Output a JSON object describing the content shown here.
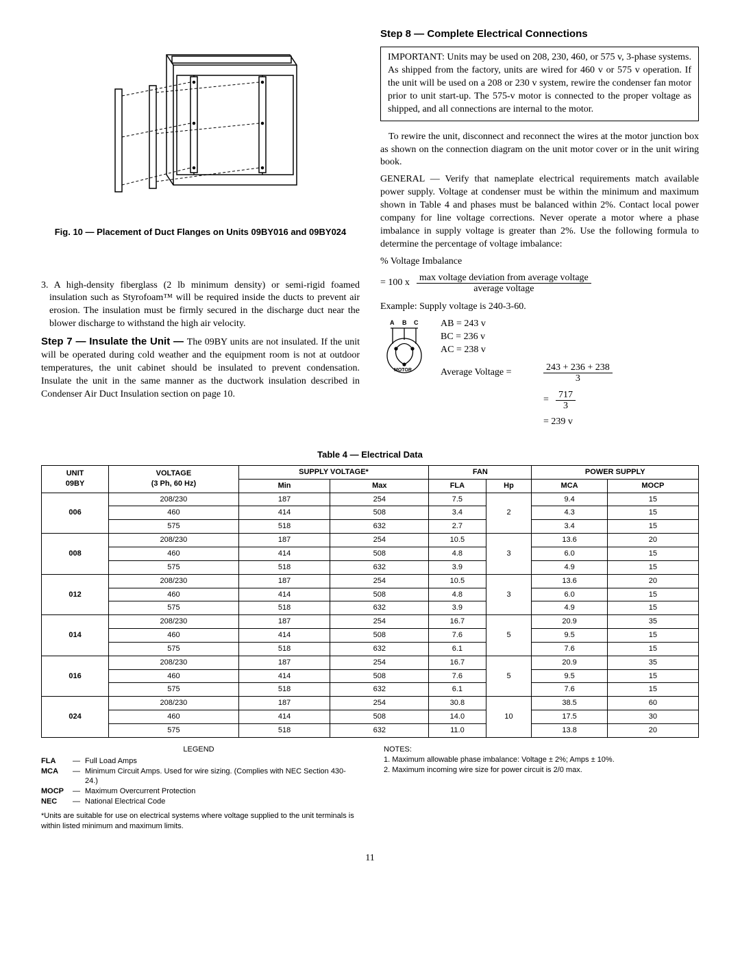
{
  "left": {
    "fig_caption": "Fig. 10 — Placement of Duct Flanges on Units 09BY016 and 09BY024",
    "item3": "3.  A high-density fiberglass (2 lb minimum density) or semi-rigid foamed insulation such as Styrofoam™ will be required inside the ducts to prevent air erosion. The insulation must be firmly secured in the discharge duct near the blower discharge to withstand the high air velocity.",
    "step7_heading": "Step 7 — Insulate the Unit — ",
    "step7_body": "The 09BY units are not insulated. If the unit will be operated during cold weather and the equipment room is not at outdoor temperatures, the unit cabinet should be insulated to prevent condensation. Insulate the unit in the same manner as the ductwork insulation described in Condenser Air Duct Insulation section on page 10."
  },
  "right": {
    "step8_heading": "Step 8 — Complete Electrical Connections",
    "important": "IMPORTANT:  Units may be used on 208, 230, 460, or 575 v, 3-phase systems. As shipped from the factory, units are wired for 460 v or 575 v operation. If the unit will be used on a 208 or 230 v system, rewire the condenser fan motor prior to unit start-up. The 575-v motor is connected to the proper voltage as shipped, and all connections are internal to the motor.",
    "para_rewire": "To rewire the unit, disconnect and reconnect the wires at the motor junction box as shown on the connection diagram on the unit motor cover or in the unit wiring book.",
    "para_general": "GENERAL — Verify that nameplate electrical requirements match available power supply. Voltage at condenser must be within the minimum and maximum shown in Table 4 and phases must be balanced within 2%. Contact local power company for line voltage corrections. Never operate a motor where a phase imbalance in supply voltage is greater than 2%. Use the following formula to determine the percentage of voltage imbalance:",
    "pct_label": "% Voltage Imbalance",
    "formula_lhs": "= 100 x",
    "formula_num": "max voltage deviation from average voltage",
    "formula_den": "average voltage",
    "example_label": "Example: Supply voltage is 240-3-60.",
    "motor_labels": {
      "a": "A",
      "b": "B",
      "c": "C",
      "motor": "MOTOR"
    },
    "eq": {
      "ab": "AB = 243 v",
      "bc": "BC = 236 v",
      "ac": "AC = 238 v",
      "avg_lbl": "Average Voltage =",
      "avg_num": "243 + 236 + 238",
      "avg_den": "3",
      "sum_num": "717",
      "sum_den": "3",
      "result": "=   239 v"
    }
  },
  "table": {
    "title": "Table 4 — Electrical Data",
    "headers": {
      "unit1": "UNIT",
      "unit2": "09BY",
      "voltage1": "VOLTAGE",
      "voltage2": "(3 Ph, 60 Hz)",
      "supply": "SUPPLY VOLTAGE*",
      "min": "Min",
      "max": "Max",
      "fan": "FAN",
      "fla": "FLA",
      "hp": "Hp",
      "power": "POWER SUPPLY",
      "mca": "MCA",
      "mocp": "MOCP"
    },
    "groups": [
      {
        "unit": "006",
        "hp": "2",
        "rows": [
          [
            "208/230",
            "187",
            "254",
            "7.5",
            "9.4",
            "15"
          ],
          [
            "460",
            "414",
            "508",
            "3.4",
            "4.3",
            "15"
          ],
          [
            "575",
            "518",
            "632",
            "2.7",
            "3.4",
            "15"
          ]
        ]
      },
      {
        "unit": "008",
        "hp": "3",
        "rows": [
          [
            "208/230",
            "187",
            "254",
            "10.5",
            "13.6",
            "20"
          ],
          [
            "460",
            "414",
            "508",
            "4.8",
            "6.0",
            "15"
          ],
          [
            "575",
            "518",
            "632",
            "3.9",
            "4.9",
            "15"
          ]
        ]
      },
      {
        "unit": "012",
        "hp": "3",
        "rows": [
          [
            "208/230",
            "187",
            "254",
            "10.5",
            "13.6",
            "20"
          ],
          [
            "460",
            "414",
            "508",
            "4.8",
            "6.0",
            "15"
          ],
          [
            "575",
            "518",
            "632",
            "3.9",
            "4.9",
            "15"
          ]
        ]
      },
      {
        "unit": "014",
        "hp": "5",
        "rows": [
          [
            "208/230",
            "187",
            "254",
            "16.7",
            "20.9",
            "35"
          ],
          [
            "460",
            "414",
            "508",
            "7.6",
            "9.5",
            "15"
          ],
          [
            "575",
            "518",
            "632",
            "6.1",
            "7.6",
            "15"
          ]
        ]
      },
      {
        "unit": "016",
        "hp": "5",
        "rows": [
          [
            "208/230",
            "187",
            "254",
            "16.7",
            "20.9",
            "35"
          ],
          [
            "460",
            "414",
            "508",
            "7.6",
            "9.5",
            "15"
          ],
          [
            "575",
            "518",
            "632",
            "6.1",
            "7.6",
            "15"
          ]
        ]
      },
      {
        "unit": "024",
        "hp": "10",
        "rows": [
          [
            "208/230",
            "187",
            "254",
            "30.8",
            "38.5",
            "60"
          ],
          [
            "460",
            "414",
            "508",
            "14.0",
            "17.5",
            "30"
          ],
          [
            "575",
            "518",
            "632",
            "11.0",
            "13.8",
            "20"
          ]
        ]
      }
    ]
  },
  "legend": {
    "title": "LEGEND",
    "items": [
      {
        "abbr": "FLA",
        "def": "Full Load Amps"
      },
      {
        "abbr": "MCA",
        "def": "Minimum Circuit Amps. Used for wire sizing. (Complies with NEC Section 430-24.)"
      },
      {
        "abbr": "MOCP",
        "def": "Maximum Overcurrent Protection"
      },
      {
        "abbr": "NEC",
        "def": "National Electrical Code"
      }
    ],
    "footnote": "*Units are suitable for use on electrical systems where voltage supplied to the unit terminals is within listed minimum and maximum limits."
  },
  "notes": {
    "title": "NOTES:",
    "items": [
      "1.  Maximum allowable phase imbalance: Voltage ±  2%; Amps ±  10%.",
      "2.  Maximum incoming wire size for power circuit is 2/0 max."
    ]
  },
  "page": "11"
}
